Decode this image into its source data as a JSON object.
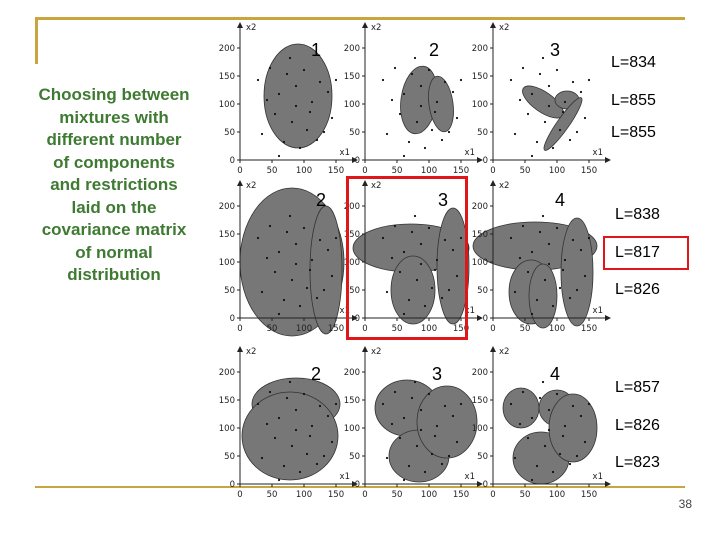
{
  "description_lines": [
    "Choosing between",
    "mixtures with",
    "different number",
    "of components",
    "and restrictions",
    "laid on the",
    "covariance matrix",
    "of normal",
    "distribution"
  ],
  "rows": [
    {
      "components": [
        "1",
        "2",
        "3"
      ],
      "likelihoods": [
        "L=834",
        "L=855",
        "L=855"
      ]
    },
    {
      "components": [
        "2",
        "3",
        "4"
      ],
      "likelihoods": [
        "L=838",
        "L=817",
        "L=826"
      ]
    },
    {
      "components": [
        "2",
        "3",
        "4"
      ],
      "likelihoods": [
        "L=857",
        "L=826",
        "L=823"
      ]
    }
  ],
  "axes": {
    "x_label": "x1",
    "y_label": "x2",
    "x_ticks": [
      "0",
      "50",
      "100",
      "150"
    ],
    "y_ticks": [
      "0",
      "50",
      "100",
      "150",
      "200"
    ]
  },
  "highlight": {
    "row": 2,
    "column": 2,
    "likelihood": "L=817"
  },
  "page_number": "38",
  "colors": {
    "rule": "#c8a53e",
    "text_green": "#3e7a32",
    "highlight": "#e0161a",
    "ellipse": "#777777"
  }
}
